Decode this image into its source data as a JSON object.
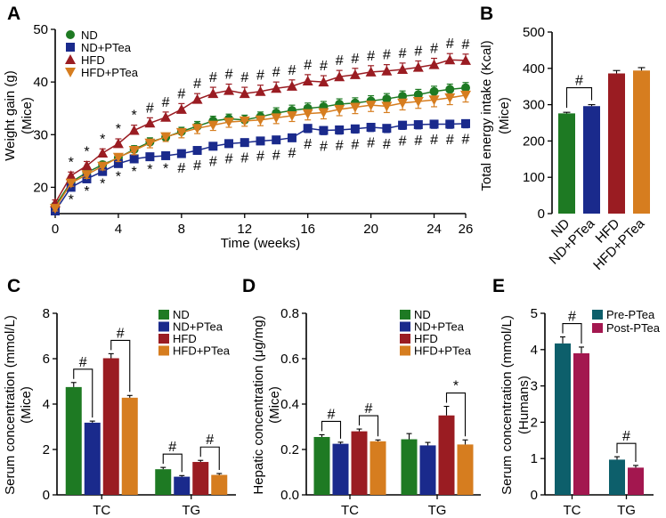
{
  "panels": [
    {
      "id": "A",
      "letter": "A"
    },
    {
      "id": "B",
      "letter": "B"
    },
    {
      "id": "C",
      "letter": "C"
    },
    {
      "id": "D",
      "letter": "D"
    },
    {
      "id": "E",
      "letter": "E"
    }
  ],
  "chart_data": [
    {
      "panel": "A",
      "type": "line",
      "xlabel": "Time (weeks)",
      "ylabel": "Weight gain (g)",
      "ylabel2": "(Mice)",
      "xlim": [
        0,
        26
      ],
      "ylim": [
        15,
        50
      ],
      "xticks": [
        0,
        4,
        8,
        12,
        16,
        20,
        24,
        26
      ],
      "yticks": [
        20,
        30,
        40,
        50
      ],
      "grid": false,
      "legend_position": "top-left",
      "x": [
        0,
        1,
        2,
        3,
        4,
        5,
        6,
        7,
        8,
        9,
        10,
        11,
        12,
        13,
        14,
        15,
        16,
        17,
        18,
        19,
        20,
        21,
        22,
        23,
        24,
        25,
        26
      ],
      "series": [
        {
          "name": "ND",
          "color": "#1e7a23",
          "marker": "circle",
          "values": [
            16.5,
            21.0,
            22.8,
            24.3,
            25.6,
            27.2,
            28.6,
            29.5,
            30.6,
            31.6,
            32.6,
            33.0,
            32.8,
            33.4,
            34.1,
            34.6,
            35.0,
            35.3,
            35.8,
            36.0,
            36.4,
            36.8,
            37.3,
            37.6,
            38.2,
            38.6,
            38.9
          ],
          "errors": [
            0.5,
            0.6,
            0.6,
            0.6,
            0.7,
            0.7,
            0.8,
            0.8,
            0.8,
            0.9,
            0.9,
            0.9,
            0.9,
            0.9,
            1.0,
            1.0,
            1.0,
            1.0,
            1.0,
            1.0,
            1.0,
            1.0,
            1.0,
            1.0,
            1.0,
            1.0,
            1.0
          ]
        },
        {
          "name": "ND+PTea",
          "color": "#1a2a8c",
          "marker": "square",
          "values": [
            15.5,
            20.0,
            21.6,
            23.0,
            24.5,
            25.4,
            25.8,
            26.0,
            26.4,
            27.0,
            27.8,
            28.3,
            28.5,
            28.8,
            29.0,
            29.4,
            31.2,
            30.8,
            30.9,
            31.1,
            31.4,
            31.2,
            31.8,
            31.9,
            32.0,
            32.0,
            32.1
          ],
          "errors": [
            0.4,
            0.5,
            0.5,
            0.5,
            0.6,
            0.6,
            0.6,
            0.6,
            0.6,
            0.7,
            0.7,
            0.7,
            0.7,
            0.7,
            0.7,
            0.7,
            0.8,
            0.8,
            0.8,
            0.8,
            0.8,
            0.8,
            0.8,
            0.8,
            0.8,
            0.8,
            0.8
          ]
        },
        {
          "name": "HFD",
          "color": "#9a1c22",
          "marker": "triangle-up",
          "values": [
            17.0,
            22.2,
            24.1,
            26.5,
            28.3,
            30.8,
            32.2,
            33.3,
            34.8,
            36.7,
            37.8,
            38.4,
            37.8,
            38.2,
            38.8,
            39.2,
            40.2,
            40.0,
            41.0,
            41.4,
            41.9,
            42.1,
            42.4,
            42.8,
            43.3,
            44.2,
            44.1
          ],
          "errors": [
            0.6,
            0.7,
            0.8,
            0.8,
            0.9,
            1.0,
            1.0,
            1.0,
            1.1,
            1.1,
            1.2,
            1.2,
            1.2,
            1.2,
            1.2,
            1.2,
            1.2,
            1.2,
            1.2,
            1.2,
            1.2,
            1.2,
            1.2,
            1.2,
            1.2,
            1.2,
            1.2
          ]
        },
        {
          "name": "HFD+PTea",
          "color": "#d67d1f",
          "marker": "triangle-down",
          "values": [
            16.0,
            20.8,
            22.4,
            24.0,
            25.7,
            27.0,
            28.4,
            29.6,
            30.4,
            31.2,
            31.8,
            32.4,
            32.6,
            32.8,
            33.2,
            33.6,
            34.0,
            34.2,
            34.8,
            35.2,
            35.6,
            35.4,
            36.0,
            36.3,
            36.6,
            37.0,
            37.5
          ],
          "errors": [
            0.5,
            0.6,
            0.7,
            0.7,
            0.8,
            0.8,
            0.9,
            0.9,
            1.0,
            1.0,
            1.0,
            1.0,
            1.0,
            1.1,
            1.1,
            1.1,
            1.2,
            1.2,
            1.2,
            1.2,
            1.2,
            1.2,
            1.3,
            1.3,
            1.3,
            1.3,
            1.3
          ]
        }
      ],
      "annotations": {
        "hash_top_weeks": [
          6,
          7,
          8,
          9,
          10,
          11,
          12,
          13,
          14,
          15,
          16,
          17,
          18,
          19,
          20,
          21,
          22,
          23,
          24,
          25,
          26
        ],
        "star_top_weeks": [
          1,
          2,
          3,
          4,
          5
        ],
        "hash_bottom_weeks": [
          8,
          9,
          10,
          11,
          12,
          13,
          14,
          15,
          16,
          17,
          18,
          19,
          20,
          21,
          22,
          23,
          24,
          25,
          26
        ],
        "star_bottom_weeks": [
          1,
          2,
          3,
          4,
          5,
          6,
          7
        ],
        "hash_symbol": "#",
        "star_symbol": "*"
      }
    },
    {
      "panel": "B",
      "type": "bar",
      "ylabel": "Total energy intake (Kcal)",
      "ylabel2": "(Mice)",
      "ylim": [
        0,
        500
      ],
      "yticks": [
        0,
        100,
        200,
        300,
        400,
        500
      ],
      "categories": [
        "ND",
        "ND+PTea",
        "HFD",
        "HFD+PTea"
      ],
      "colors": [
        "#1e7a23",
        "#1a2a8c",
        "#9a1c22",
        "#d67d1f"
      ],
      "values": [
        276,
        296,
        386,
        394
      ],
      "errors": [
        3,
        4,
        8,
        8
      ],
      "annotations": [
        {
          "from": 0,
          "to": 1,
          "symbol": "#"
        }
      ]
    },
    {
      "panel": "C",
      "type": "bar",
      "ylabel": "Serum concentration (mmol/L)",
      "ylabel2": "(Mice)",
      "ylim": [
        0,
        8
      ],
      "yticks": [
        0,
        2,
        4,
        6,
        8
      ],
      "categories": [
        "TC",
        "TG"
      ],
      "legend_position": "top-right",
      "series": [
        {
          "name": "ND",
          "color": "#1e7a23",
          "values": [
            4.75,
            1.13
          ],
          "errors": [
            0.2,
            0.08
          ]
        },
        {
          "name": "ND+PTea",
          "color": "#1a2a8c",
          "values": [
            3.18,
            0.8
          ],
          "errors": [
            0.07,
            0.05
          ]
        },
        {
          "name": "HFD",
          "color": "#9a1c22",
          "values": [
            6.02,
            1.45
          ],
          "errors": [
            0.2,
            0.07
          ]
        },
        {
          "name": "HFD+PTea",
          "color": "#d67d1f",
          "values": [
            4.28,
            0.88
          ],
          "errors": [
            0.1,
            0.06
          ]
        }
      ],
      "annotations": [
        {
          "category": 0,
          "from": 0,
          "to": 1,
          "symbol": "#"
        },
        {
          "category": 0,
          "from": 2,
          "to": 3,
          "symbol": "#"
        },
        {
          "category": 1,
          "from": 0,
          "to": 1,
          "symbol": "#"
        },
        {
          "category": 1,
          "from": 2,
          "to": 3,
          "symbol": "#"
        }
      ]
    },
    {
      "panel": "D",
      "type": "bar",
      "ylabel": "Hepatic concentration (μg/mg)",
      "ylabel2": "(Mice)",
      "ylim": [
        0,
        0.8
      ],
      "yticks": [
        0,
        0.2,
        0.4,
        0.6,
        0.8
      ],
      "ytick_labels": [
        "0.0",
        "0.2",
        "0.4",
        "0.6",
        "0.8"
      ],
      "categories": [
        "TC",
        "TG"
      ],
      "legend_position": "top-right",
      "series": [
        {
          "name": "ND",
          "color": "#1e7a23",
          "values": [
            0.255,
            0.245
          ],
          "errors": [
            0.01,
            0.025
          ]
        },
        {
          "name": "ND+PTea",
          "color": "#1a2a8c",
          "values": [
            0.225,
            0.218
          ],
          "errors": [
            0.007,
            0.013
          ]
        },
        {
          "name": "HFD",
          "color": "#9a1c22",
          "values": [
            0.28,
            0.35
          ],
          "errors": [
            0.01,
            0.04
          ]
        },
        {
          "name": "HFD+PTea",
          "color": "#d67d1f",
          "values": [
            0.236,
            0.222
          ],
          "errors": [
            0.006,
            0.02
          ]
        }
      ],
      "annotations": [
        {
          "category": 0,
          "from": 0,
          "to": 1,
          "symbol": "#"
        },
        {
          "category": 0,
          "from": 2,
          "to": 3,
          "symbol": "#"
        },
        {
          "category": 1,
          "from": 2,
          "to": 3,
          "symbol": "*"
        }
      ]
    },
    {
      "panel": "E",
      "type": "bar",
      "ylabel": "Serum concentration (mmol/L)",
      "ylabel2": "(Humans)",
      "ylim": [
        0,
        5
      ],
      "yticks": [
        0,
        1,
        2,
        3,
        4,
        5
      ],
      "categories": [
        "TC",
        "TG"
      ],
      "legend_position": "top-right",
      "series": [
        {
          "name": "Pre-PTea",
          "color": "#0d5f6b",
          "values": [
            4.17,
            0.97
          ],
          "errors": [
            0.18,
            0.08
          ]
        },
        {
          "name": "Post-PTea",
          "color": "#a3174f",
          "values": [
            3.9,
            0.75
          ],
          "errors": [
            0.17,
            0.06
          ]
        }
      ],
      "annotations": [
        {
          "category": 0,
          "from": 0,
          "to": 1,
          "symbol": "#"
        },
        {
          "category": 1,
          "from": 0,
          "to": 1,
          "symbol": "#"
        }
      ]
    }
  ]
}
